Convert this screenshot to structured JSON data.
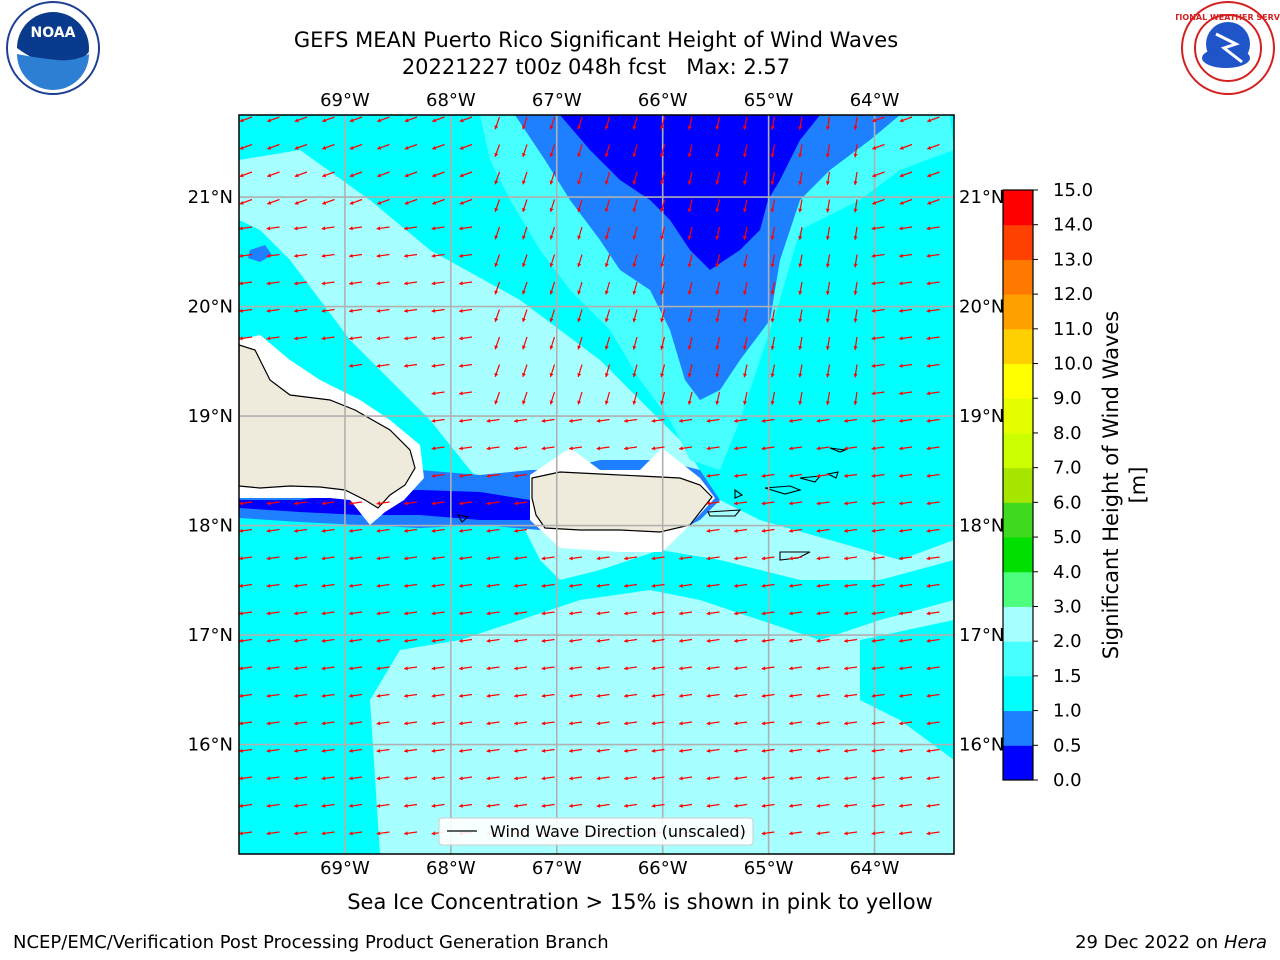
{
  "title": {
    "line1": "GEFS MEAN Puerto Rico Significant Height of Wind Waves",
    "line2": "20221227 t00z 048h fcst   Max: 2.57"
  },
  "map": {
    "lon_ticks": [
      "69°W",
      "68°W",
      "67°W",
      "66°W",
      "65°W",
      "64°W"
    ],
    "lat_ticks": [
      "21°N",
      "20°N",
      "19°N",
      "18°N",
      "17°N",
      "16°N"
    ],
    "lon_range": [
      -70.0,
      -63.25
    ],
    "lat_range": [
      15.0,
      21.75
    ],
    "colors": {
      "ocean_base": "#00ffff",
      "light_band": "#a8ffff",
      "mid_band": "#47ffff",
      "blue_band": "#1e7fff",
      "deep_band": "#0000ff",
      "land": "#efebdc",
      "arrow": "#ff0000",
      "grid": "#b0b0b0"
    }
  },
  "legend": {
    "label": "Wind Wave Direction (unscaled)"
  },
  "colorbar": {
    "label": "Significant Height of Wind Waves [m]",
    "ticks": [
      "0.0",
      "0.5",
      "1.0",
      "1.5",
      "2.0",
      "3.0",
      "4.0",
      "5.0",
      "6.0",
      "7.0",
      "8.0",
      "9.0",
      "10.0",
      "11.0",
      "12.0",
      "13.0",
      "14.0",
      "15.0"
    ],
    "colors": [
      "#0000ff",
      "#1e7fff",
      "#00ffff",
      "#47ffff",
      "#a8ffff",
      "#4cff7f",
      "#00e000",
      "#3fd91f",
      "#a6e600",
      "#ccff00",
      "#e5ff00",
      "#ffff00",
      "#ffd000",
      "#ffa000",
      "#ff7800",
      "#ff4000",
      "#ff0000"
    ]
  },
  "caption": "Sea Ice Concentration > 15% is shown in pink to yellow",
  "footer": {
    "left": "NCEP/EMC/Verification Post Processing Product Generation Branch",
    "right_date": "29 Dec 2022 on ",
    "right_machine": "Hera"
  },
  "logos": {
    "noaa_text": "NOAA",
    "nws_ring": "NATIONAL WEATHER SERVICE"
  }
}
